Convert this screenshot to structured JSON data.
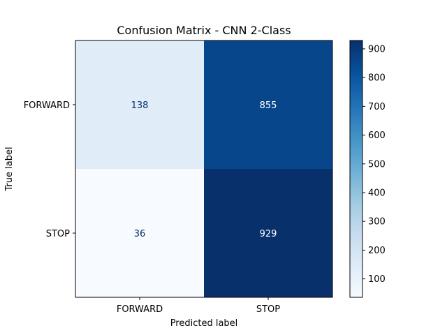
{
  "chart_data": {
    "type": "heatmap",
    "title": "Confusion Matrix - CNN 2-Class",
    "xlabel": "Predicted label",
    "ylabel": "True label",
    "x_categories": [
      "FORWARD",
      "STOP"
    ],
    "y_categories": [
      "FORWARD",
      "STOP"
    ],
    "values": [
      [
        138,
        855
      ],
      [
        36,
        929
      ]
    ],
    "colormap": "Blues",
    "value_range": [
      36,
      929
    ],
    "colorbar_ticks": [
      100,
      200,
      300,
      400,
      500,
      600,
      700,
      800,
      900
    ],
    "grid": false
  }
}
